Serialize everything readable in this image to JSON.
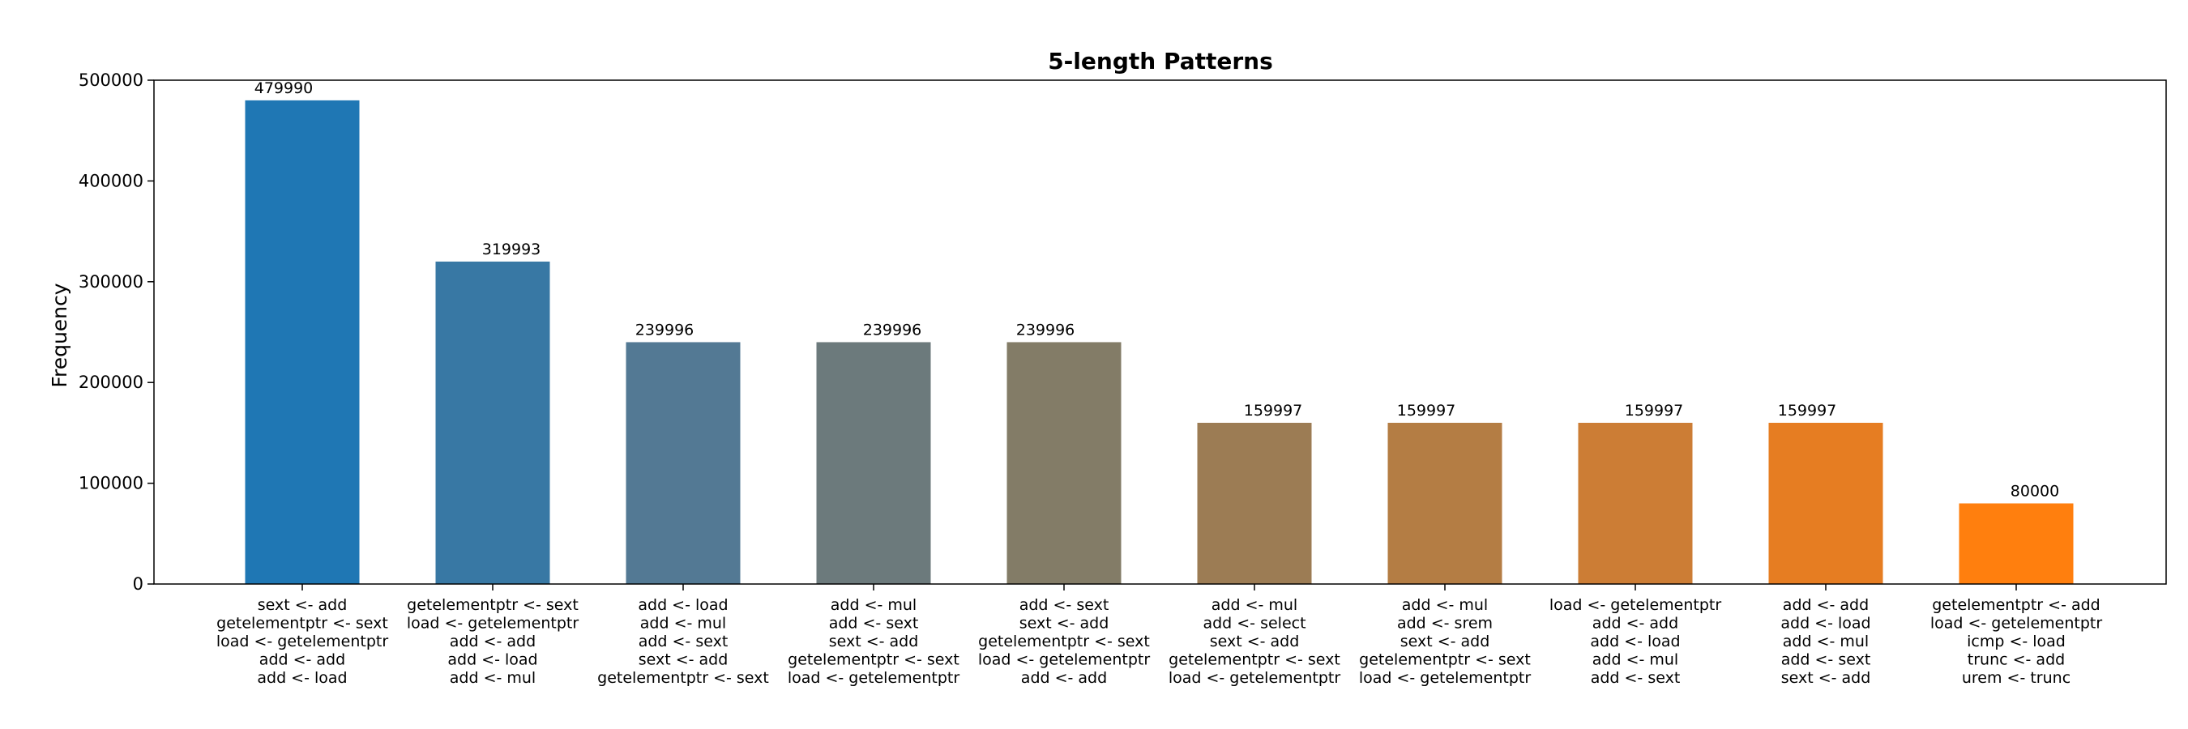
{
  "chart_data": {
    "type": "bar",
    "title": "5-length Patterns",
    "ylabel": "Frequency",
    "xlabel": "",
    "ylim": [
      0,
      500000
    ],
    "yticks": [
      0,
      100000,
      200000,
      300000,
      400000,
      500000
    ],
    "grid": false,
    "legend": "none",
    "categories": [
      "sext <- add\ngetelementptr <- sext\nload <- getelementptr\nadd <- add\nadd <- load",
      "getelementptr <- sext\nload <- getelementptr\nadd <- add\nadd <- load\nadd <- mul",
      "add <- load\nadd <- mul\nadd <- sext\nsext <- add\ngetelementptr <- sext",
      "add <- mul\nadd <- sext\nsext <- add\ngetelementptr <- sext\nload <- getelementptr",
      "add <- sext\nsext <- add\ngetelementptr <- sext\nload <- getelementptr\nadd <- add",
      "add <- mul\nadd <- select\nsext <- add\ngetelementptr <- sext\nload <- getelementptr",
      "add <- mul\nadd <- srem\nsext <- add\ngetelementptr <- sext\nload <- getelementptr",
      "load <- getelementptr\nadd <- add\nadd <- load\nadd <- mul\nadd <- sext",
      "add <- add\nadd <- load\nadd <- mul\nadd <- sext\nsext <- add",
      "getelementptr <- add\nload <- getelementptr\nicmp <- load\ntrunc <- add\nurem <- trunc"
    ],
    "values": [
      479990,
      319993,
      239996,
      239996,
      239996,
      159997,
      159997,
      159997,
      159997,
      80000
    ],
    "data_labels": [
      "479990",
      "319993",
      "239996",
      "239996",
      "239996",
      "159997",
      "159997",
      "159997",
      "159997",
      "80000"
    ],
    "colors": [
      "#1f77b4",
      "#3878a4",
      "#537994",
      "#6c7a7c",
      "#837c67",
      "#9c7c54",
      "#b47d44",
      "#cc7d35",
      "#e67d22",
      "#ff7f0e"
    ]
  }
}
